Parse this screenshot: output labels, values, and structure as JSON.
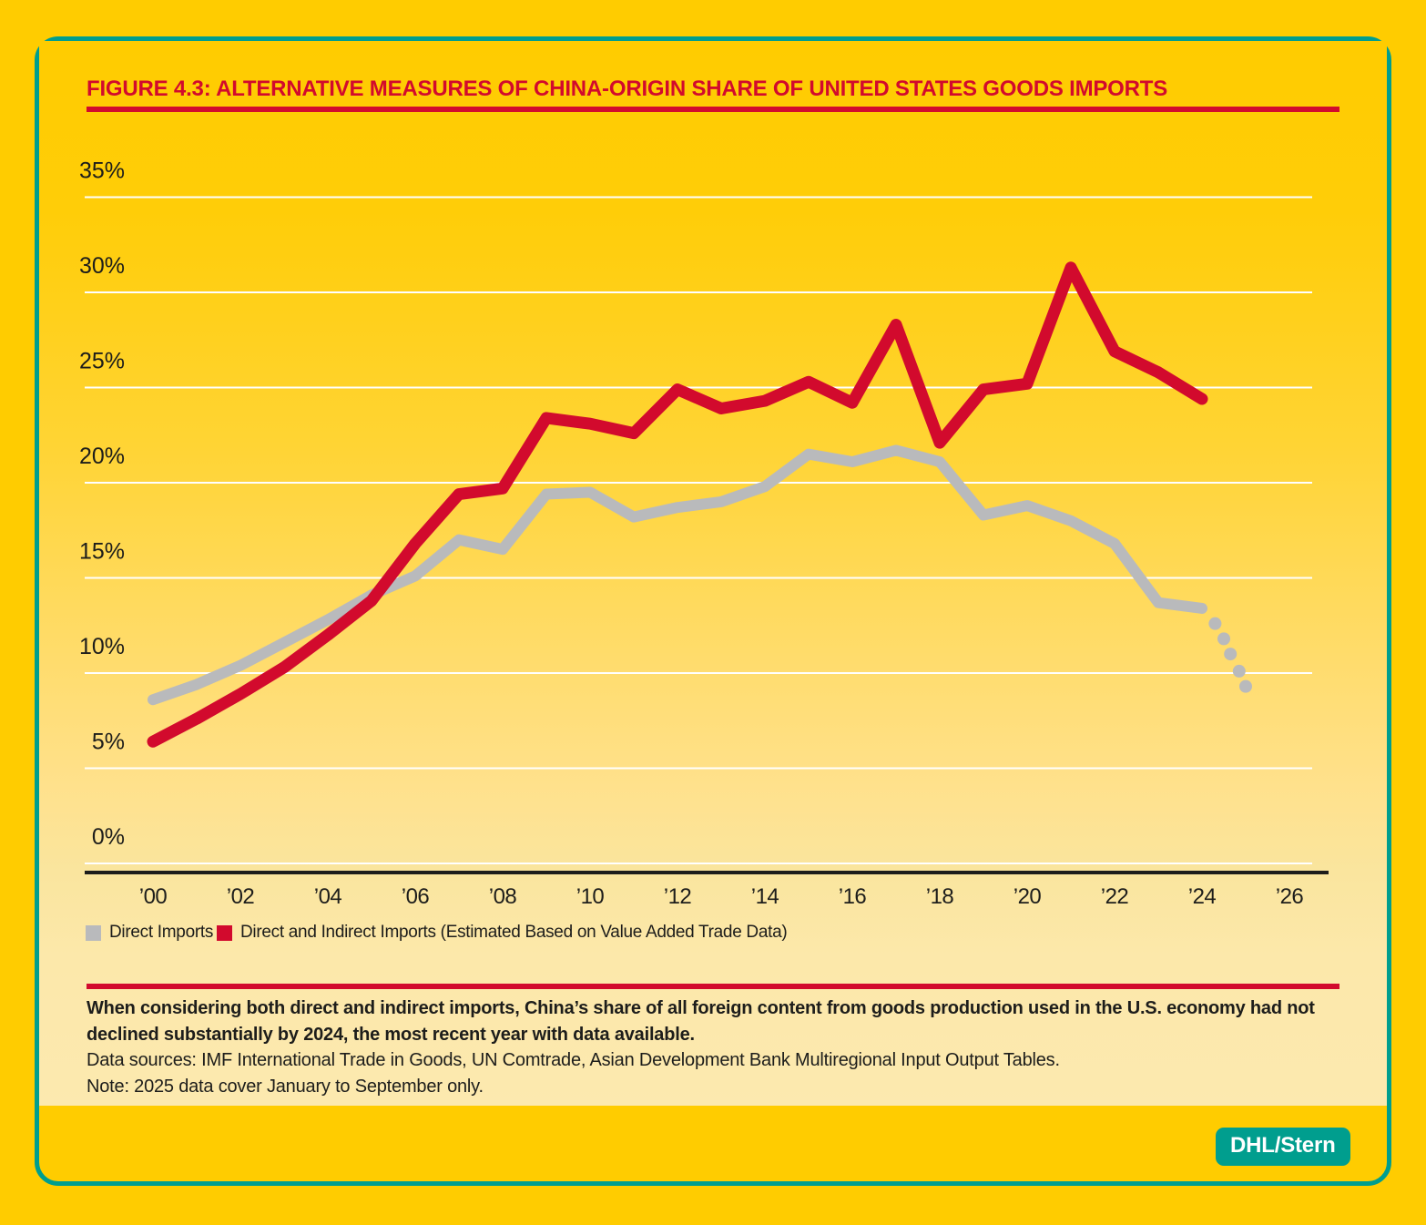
{
  "figure": {
    "title": "FIGURE 4.3: ALTERNATIVE MEASURES OF CHINA-ORIGIN SHARE OF UNITED STATES GOODS IMPORTS"
  },
  "colors": {
    "background-yellow": "#ffcc00",
    "panel-gradient-top": "#ffcc00",
    "panel-gradient-bottom": "#fce9af",
    "accent-red": "#d20a2d",
    "series-gray": "#b9babc",
    "teal": "#009e8e",
    "text-dark": "#1d1d1b",
    "gridline-white": "#ffffff"
  },
  "chart_data": {
    "type": "line",
    "title": "Alternative measures of China-origin share of United States goods imports",
    "x_years": [
      2000,
      2001,
      2002,
      2003,
      2004,
      2005,
      2006,
      2007,
      2008,
      2009,
      2010,
      2011,
      2012,
      2013,
      2014,
      2015,
      2016,
      2017,
      2018,
      2019,
      2020,
      2021,
      2022,
      2023,
      2024
    ],
    "series": [
      {
        "name": "Direct Imports",
        "color": "#b9babc",
        "values": [
          8.6,
          9.4,
          10.4,
          11.6,
          12.8,
          14.1,
          15.1,
          17.0,
          16.5,
          19.4,
          19.5,
          18.2,
          18.7,
          19.0,
          19.8,
          21.5,
          21.1,
          21.7,
          21.1,
          18.3,
          18.8,
          18.0,
          16.8,
          13.7,
          13.4
        ]
      },
      {
        "name": "Direct and Indirect Imports (Estimated Based on Value Added Trade Data)",
        "color": "#d20a2d",
        "values": [
          6.4,
          7.6,
          8.9,
          10.3,
          12.0,
          13.8,
          16.8,
          19.4,
          19.7,
          23.4,
          23.1,
          22.6,
          24.9,
          23.9,
          24.3,
          25.3,
          24.2,
          28.3,
          22.1,
          24.9,
          25.2,
          31.3,
          26.9,
          25.8,
          24.4
        ]
      }
    ],
    "projection_dots": {
      "series": "Direct Imports",
      "meaning": "dotted continuation to 2025 (January to September only)",
      "points": [
        [
          2024.3,
          12.6
        ],
        [
          2024.5,
          11.8
        ],
        [
          2024.65,
          11.0
        ],
        [
          2024.85,
          10.1
        ],
        [
          2025.0,
          9.3
        ]
      ]
    },
    "yticks": [
      35,
      30,
      25,
      20,
      15,
      10,
      5,
      0
    ],
    "ytick_labels": [
      "35%",
      "30%",
      "25%",
      "20%",
      "15%",
      "10%",
      "5%",
      "0%"
    ],
    "xticks": [
      2000,
      2002,
      2004,
      2006,
      2008,
      2010,
      2012,
      2014,
      2016,
      2018,
      2020,
      2022,
      2024,
      2026
    ],
    "xtick_labels": [
      "’00",
      "’02",
      "’04",
      "’06",
      "’08",
      "’10",
      "’12",
      "’14",
      "’16",
      "’18",
      "’20",
      "’22",
      "’24",
      "’26"
    ],
    "ylim": [
      0,
      37
    ],
    "xlim": [
      1998.4,
      2026.6
    ],
    "grid": true,
    "legend_position": "bottom-left"
  },
  "legend": {
    "items": [
      {
        "label": "Direct Imports",
        "swatch": "gray"
      },
      {
        "label": "Direct and Indirect Imports (Estimated Based on Value Added Trade Data)",
        "swatch": "red"
      }
    ]
  },
  "footer": {
    "takeaway": "When considering both direct and indirect imports, China’s share of all foreign content from goods production used in the U.S. economy had not declined substantially by 2024, the most recent year with data available.",
    "data_sources": "Data sources: IMF International Trade in Goods, UN Comtrade, Asian Development Bank Multiregional Input Output Tables.",
    "note": "Note: 2025 data cover January to September only."
  },
  "badge": {
    "label": "DHL/Stern"
  }
}
